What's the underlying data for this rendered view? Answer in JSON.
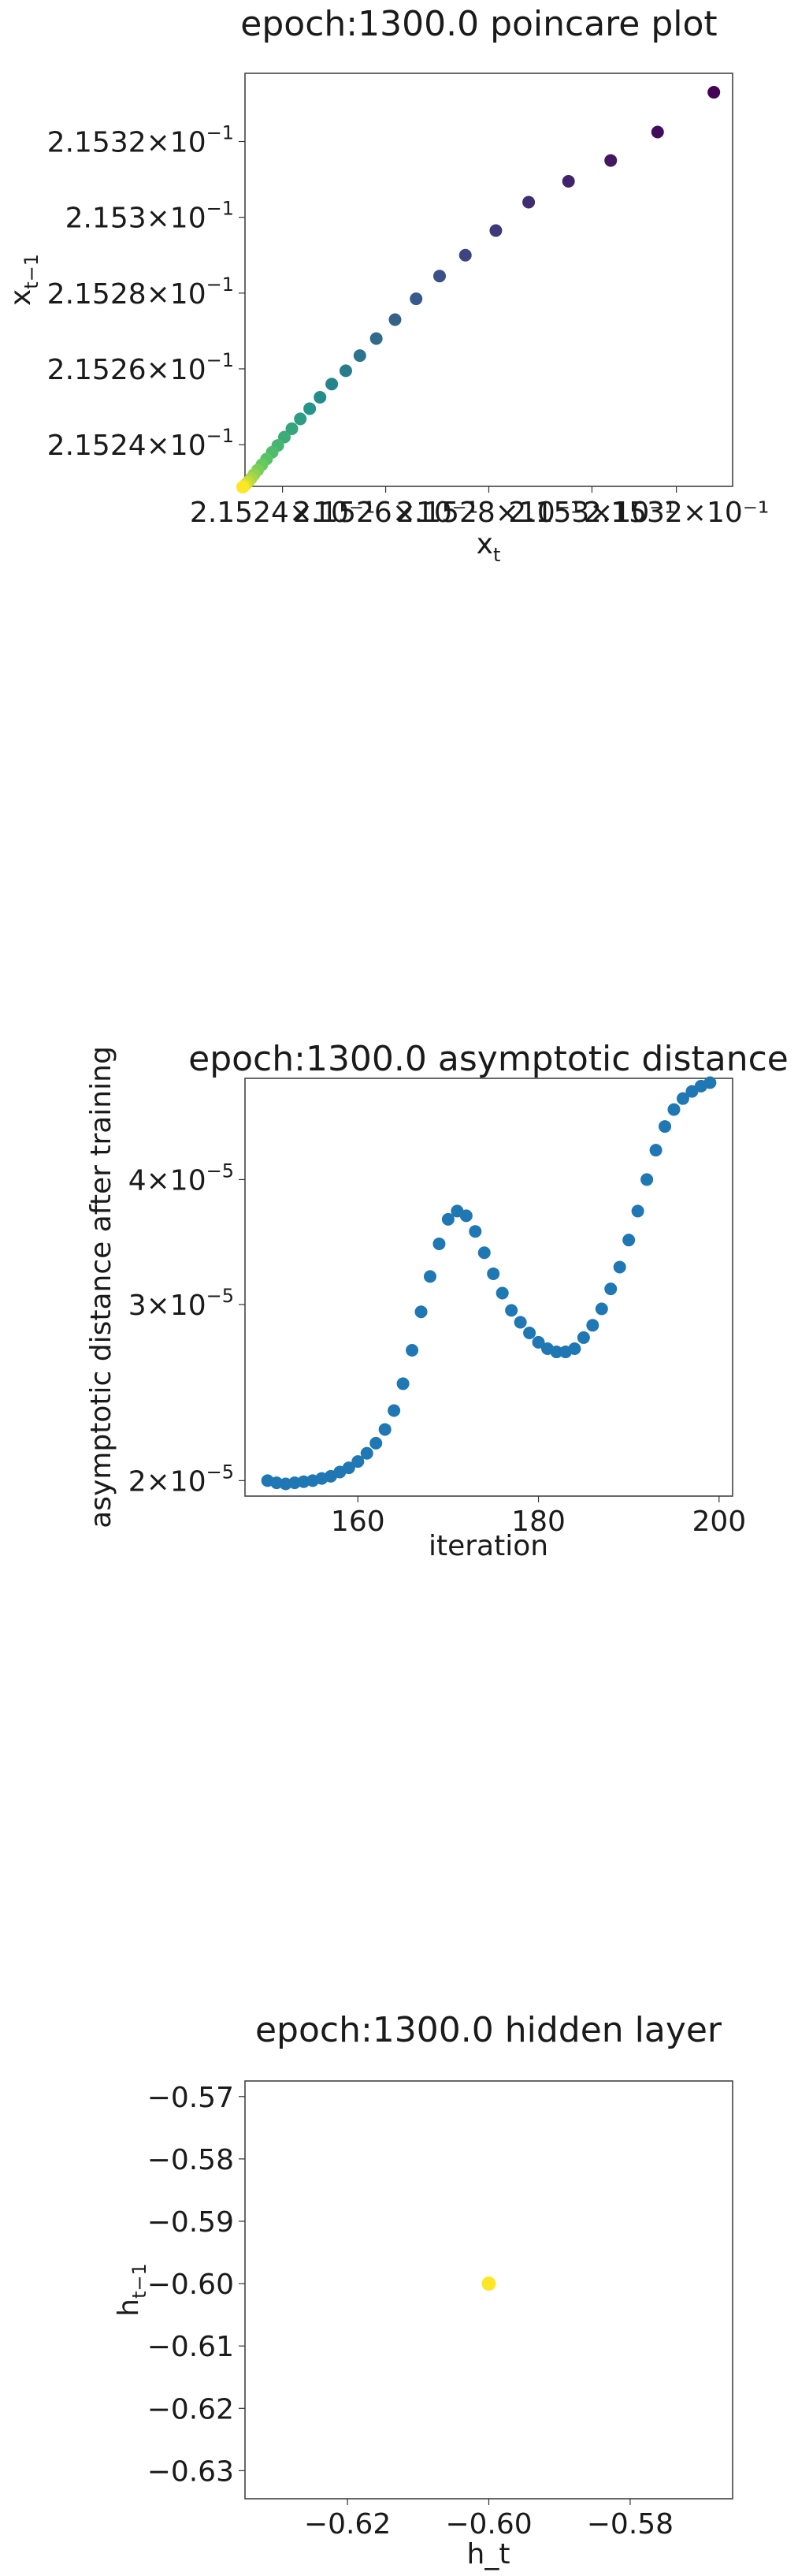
{
  "chart_data": [
    {
      "type": "scatter",
      "title": "epoch:1300.0 poincare plot",
      "xlabel": "x_t",
      "ylabel": "x_{t-1}",
      "xlabel_main": "x",
      "xlabel_sub": "t",
      "ylabel_main": "x",
      "ylabel_sub": "t−1",
      "colormap": "viridis",
      "xlim": [
        0.215232,
        0.215336
      ],
      "ylim": [
        0.215229,
        0.215338
      ],
      "xticks": [
        {
          "value": 0.21524,
          "label": "2.1524×10⁻¹"
        },
        {
          "value": 0.215262,
          "label": "2.1526×10⁻¹"
        },
        {
          "value": 0.215284,
          "label": "2.1528×10⁻¹"
        },
        {
          "value": 0.215306,
          "label": "2.153×10⁻¹"
        },
        {
          "value": 0.215324,
          "label": "2.1532×10⁻¹"
        }
      ],
      "yticks": [
        {
          "value": 0.21524,
          "mant": "2.1524",
          "base": "10",
          "exp": "−1"
        },
        {
          "value": 0.21526,
          "mant": "2.1526",
          "base": "10",
          "exp": "−1"
        },
        {
          "value": 0.21528,
          "mant": "2.1528",
          "base": "10",
          "exp": "−1"
        },
        {
          "value": 0.2153,
          "mant": "2.153",
          "base": "10",
          "exp": "−1"
        },
        {
          "value": 0.21532,
          "mant": "2.1532",
          "base": "10",
          "exp": "−1"
        }
      ],
      "points": [
        {
          "x": 0.215332,
          "y": 0.215333
        },
        {
          "x": 0.21532,
          "y": 0.2153225
        },
        {
          "x": 0.21531,
          "y": 0.215315
        },
        {
          "x": 0.215301,
          "y": 0.2153095
        },
        {
          "x": 0.2152925,
          "y": 0.215304
        },
        {
          "x": 0.2152855,
          "y": 0.2152965
        },
        {
          "x": 0.215279,
          "y": 0.21529
        },
        {
          "x": 0.2152735,
          "y": 0.2152845
        },
        {
          "x": 0.2152685,
          "y": 0.2152785
        },
        {
          "x": 0.215264,
          "y": 0.215273
        },
        {
          "x": 0.21526,
          "y": 0.215268
        },
        {
          "x": 0.2152565,
          "y": 0.2152635
        },
        {
          "x": 0.2152535,
          "y": 0.2152595
        },
        {
          "x": 0.2152505,
          "y": 0.215256
        },
        {
          "x": 0.215248,
          "y": 0.2152525
        },
        {
          "x": 0.2152458,
          "y": 0.2152495
        },
        {
          "x": 0.2152438,
          "y": 0.2152468
        },
        {
          "x": 0.215242,
          "y": 0.2152442
        },
        {
          "x": 0.2152404,
          "y": 0.215242
        },
        {
          "x": 0.215239,
          "y": 0.2152398
        },
        {
          "x": 0.2152378,
          "y": 0.215238
        },
        {
          "x": 0.2152366,
          "y": 0.2152362
        },
        {
          "x": 0.2152356,
          "y": 0.2152347
        },
        {
          "x": 0.2152347,
          "y": 0.2152333
        },
        {
          "x": 0.2152339,
          "y": 0.2152321
        },
        {
          "x": 0.2152333,
          "y": 0.2152311
        },
        {
          "x": 0.2152327,
          "y": 0.2152302
        },
        {
          "x": 0.2152322,
          "y": 0.2152296
        },
        {
          "x": 0.2152318,
          "y": 0.2152291
        },
        {
          "x": 0.2152315,
          "y": 0.2152288
        }
      ]
    },
    {
      "type": "scatter",
      "title": "epoch:1300.0 asymptotic distance",
      "xlabel": "iteration",
      "ylabel": "asymptotic distance after training",
      "yscale": "log",
      "color": "#1f77b4",
      "xlim": [
        147.5,
        201.5
      ],
      "ylim": [
        1.93e-05,
        5.05e-05
      ],
      "xticks": [
        160,
        180,
        200
      ],
      "yticks": [
        {
          "value": 2e-05,
          "mant": "2",
          "base": "10",
          "exp": "−5"
        },
        {
          "value": 3e-05,
          "mant": "3",
          "base": "10",
          "exp": "−5"
        },
        {
          "value": 4e-05,
          "mant": "4",
          "base": "10",
          "exp": "−5"
        }
      ],
      "x": [
        150,
        151,
        152,
        153,
        154,
        155,
        156,
        157,
        158,
        159,
        160,
        161,
        162,
        163,
        164,
        165,
        166,
        167,
        168,
        169,
        170,
        171,
        172,
        173,
        174,
        175,
        176,
        177,
        178,
        179,
        180,
        181,
        182,
        183,
        184,
        185,
        186,
        187,
        188,
        189,
        190,
        191,
        192,
        193,
        194,
        195,
        196,
        197,
        198,
        199
      ],
      "y": [
        2e-05,
        1.99e-05,
        1.985e-05,
        1.99e-05,
        1.995e-05,
        2e-05,
        2.01e-05,
        2.02e-05,
        2.04e-05,
        2.06e-05,
        2.09e-05,
        2.13e-05,
        2.18e-05,
        2.25e-05,
        2.35e-05,
        2.5e-05,
        2.7e-05,
        2.95e-05,
        3.2e-05,
        3.45e-05,
        3.65e-05,
        3.72e-05,
        3.68e-05,
        3.55e-05,
        3.38e-05,
        3.22e-05,
        3.08e-05,
        2.96e-05,
        2.88e-05,
        2.81e-05,
        2.75e-05,
        2.71e-05,
        2.69e-05,
        2.69e-05,
        2.71e-05,
        2.78e-05,
        2.86e-05,
        2.97e-05,
        3.11e-05,
        3.27e-05,
        3.48e-05,
        3.72e-05,
        4e-05,
        4.28e-05,
        4.52e-05,
        4.7e-05,
        4.82e-05,
        4.9e-05,
        4.96e-05,
        5e-05
      ]
    },
    {
      "type": "scatter",
      "title": "epoch:1300.0 hidden layer",
      "xlabel": "h_t",
      "ylabel": "h_{t-1}",
      "ylabel_main": "h",
      "ylabel_sub": "t−1",
      "color": "#fde725",
      "xlim": [
        -0.6345,
        -0.5655
      ],
      "ylim": [
        -0.6345,
        -0.5675
      ],
      "xticks": [
        {
          "value": -0.62,
          "label": "−0.62"
        },
        {
          "value": -0.6,
          "label": "−0.60"
        },
        {
          "value": -0.58,
          "label": "−0.58"
        }
      ],
      "yticks": [
        {
          "value": -0.57,
          "label": "−0.57"
        },
        {
          "value": -0.58,
          "label": "−0.58"
        },
        {
          "value": -0.59,
          "label": "−0.59"
        },
        {
          "value": -0.6,
          "label": "−0.60"
        },
        {
          "value": -0.61,
          "label": "−0.61"
        },
        {
          "value": -0.62,
          "label": "−0.62"
        },
        {
          "value": -0.63,
          "label": "−0.63"
        }
      ],
      "points": [
        {
          "x": -0.6,
          "y": -0.6
        }
      ]
    }
  ]
}
